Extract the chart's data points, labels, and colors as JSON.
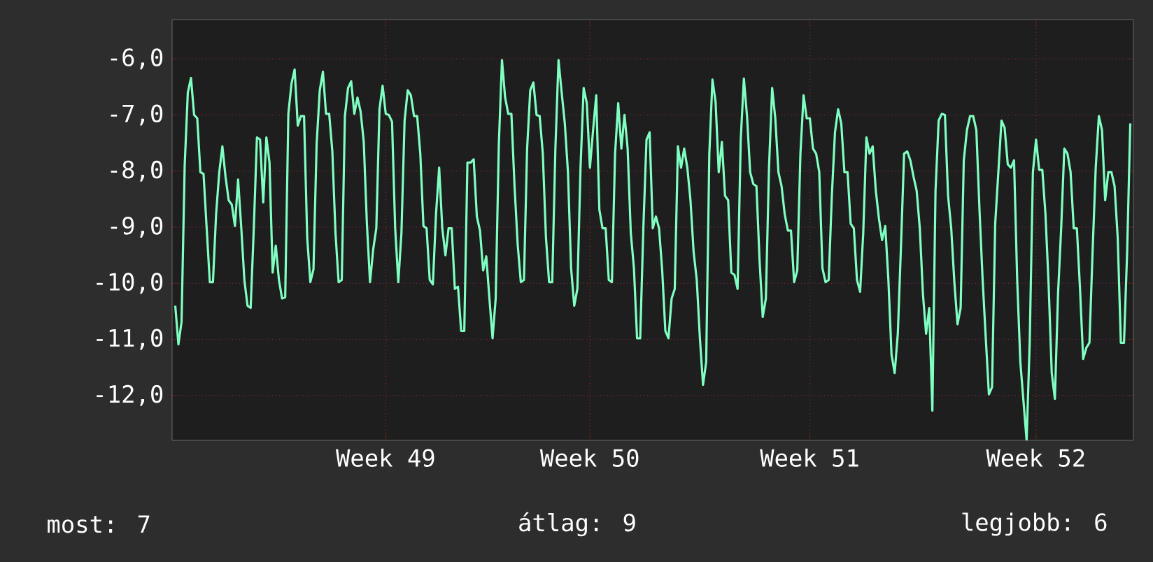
{
  "chart_data": {
    "type": "line",
    "categories": [
      null,
      null,
      null,
      null,
      null,
      null,
      null,
      null,
      null,
      null,
      null,
      null,
      null,
      null,
      null,
      null,
      null,
      null,
      null,
      null,
      null,
      null,
      null,
      null,
      null,
      null,
      null,
      null,
      null,
      null,
      null,
      null,
      null,
      null,
      null,
      null,
      null,
      null,
      null,
      null,
      null,
      null,
      null,
      null,
      null,
      null,
      null,
      null,
      null,
      null,
      null,
      null,
      null,
      null,
      null,
      null,
      null,
      null,
      null,
      null,
      null,
      null,
      null,
      null,
      null,
      null,
      null,
      "Week 49",
      null,
      null,
      null,
      null,
      null,
      null,
      null,
      null,
      null,
      null,
      null,
      null,
      null,
      null,
      null,
      null,
      null,
      null,
      null,
      null,
      null,
      null,
      null,
      null,
      null,
      null,
      null,
      null,
      null,
      null,
      null,
      null,
      null,
      null,
      null,
      null,
      null,
      null,
      null,
      null,
      null,
      null,
      null,
      null,
      null,
      null,
      null,
      null,
      null,
      null,
      null,
      null,
      null,
      null,
      null,
      null,
      null,
      null,
      null,
      null,
      null,
      null,
      null,
      null,
      "Week 50",
      null,
      null,
      null,
      null,
      null,
      null,
      null,
      null,
      null,
      null,
      null,
      null,
      null,
      null,
      null,
      null,
      null,
      null,
      null,
      null,
      null,
      null,
      null,
      null,
      null,
      null,
      null,
      null,
      null,
      null,
      null,
      null,
      null,
      null,
      null,
      null,
      null,
      null,
      null,
      null,
      null,
      null,
      null,
      null,
      null,
      null,
      null,
      null,
      null,
      null,
      null,
      null,
      null,
      null,
      null,
      null,
      null,
      null,
      null,
      null,
      null,
      null,
      null,
      null,
      null,
      null,
      null,
      null,
      null,
      "Week 51",
      null,
      null,
      null,
      null,
      null,
      null,
      null,
      null,
      null,
      null,
      null,
      null,
      null,
      null,
      null,
      null,
      null,
      null,
      null,
      null,
      null,
      null,
      null,
      null,
      null,
      null,
      null,
      null,
      null,
      null,
      null,
      null,
      null,
      null,
      null,
      null,
      null,
      null,
      null,
      null,
      null,
      null,
      null,
      null,
      null,
      null,
      null,
      null,
      null,
      null,
      null,
      null,
      null,
      null,
      null,
      null,
      null,
      null,
      null,
      null,
      null,
      null,
      null,
      null,
      null,
      null,
      null,
      null,
      null,
      null,
      null,
      "Week 52",
      null,
      null,
      null,
      null,
      null,
      null,
      null,
      null,
      null,
      null,
      null,
      null,
      null,
      null,
      null,
      null,
      null,
      null,
      null,
      null,
      null,
      null,
      null,
      null,
      null,
      null,
      null,
      null,
      null,
      null
    ],
    "values": [
      -10.4,
      -11.09,
      -10.69,
      -7.9,
      -6.6,
      -6.34,
      -7.0,
      -7.06,
      -8.02,
      -8.05,
      -9.02,
      -9.98,
      -9.98,
      -8.77,
      -8.02,
      -7.56,
      -8.1,
      -8.52,
      -8.6,
      -8.98,
      -8.15,
      -9.0,
      -9.94,
      -10.4,
      -10.44,
      -9.02,
      -7.4,
      -7.44,
      -8.56,
      -7.4,
      -7.85,
      -9.81,
      -9.33,
      -9.94,
      -10.27,
      -10.25,
      -6.98,
      -6.44,
      -6.19,
      -7.19,
      -7.02,
      -7.02,
      -9.19,
      -9.98,
      -9.75,
      -7.52,
      -6.56,
      -6.23,
      -6.98,
      -6.98,
      -7.65,
      -9.1,
      -9.98,
      -9.94,
      -7.02,
      -6.52,
      -6.4,
      -6.98,
      -6.69,
      -6.94,
      -7.48,
      -8.94,
      -9.98,
      -9.4,
      -9.02,
      -6.9,
      -6.48,
      -6.98,
      -7.0,
      -7.12,
      -9.02,
      -9.98,
      -9.1,
      -7.1,
      -6.56,
      -6.65,
      -7.02,
      -7.02,
      -7.69,
      -8.98,
      -9.02,
      -9.94,
      -10.02,
      -8.77,
      -7.94,
      -9.02,
      -9.5,
      -9.02,
      -9.02,
      -10.1,
      -10.06,
      -10.85,
      -10.85,
      -7.85,
      -7.85,
      -7.79,
      -8.81,
      -9.06,
      -9.77,
      -9.52,
      -10.27,
      -10.98,
      -10.27,
      -7.52,
      -6.02,
      -6.69,
      -6.98,
      -6.98,
      -8.27,
      -9.31,
      -9.98,
      -9.94,
      -7.6,
      -6.56,
      -6.42,
      -7.0,
      -7.02,
      -7.69,
      -9.19,
      -9.98,
      -9.98,
      -7.6,
      -6.02,
      -6.6,
      -7.15,
      -8.02,
      -9.73,
      -10.4,
      -10.1,
      -7.94,
      -6.52,
      -6.79,
      -7.94,
      -7.27,
      -6.65,
      -8.69,
      -9.02,
      -9.02,
      -9.94,
      -9.98,
      -7.69,
      -6.79,
      -7.6,
      -7.0,
      -7.6,
      -9.1,
      -9.73,
      -10.98,
      -10.98,
      -9.02,
      -7.44,
      -7.31,
      -9.02,
      -8.81,
      -9.02,
      -9.77,
      -10.85,
      -10.98,
      -10.27,
      -10.1,
      -7.56,
      -7.94,
      -7.6,
      -7.94,
      -8.52,
      -9.44,
      -9.94,
      -10.98,
      -11.81,
      -11.4,
      -7.69,
      -6.37,
      -6.77,
      -8.02,
      -7.48,
      -8.44,
      -8.52,
      -9.81,
      -9.85,
      -10.1,
      -7.44,
      -6.35,
      -7.02,
      -8.02,
      -8.23,
      -8.27,
      -9.6,
      -10.6,
      -10.27,
      -7.94,
      -6.52,
      -7.06,
      -8.02,
      -8.27,
      -8.77,
      -9.06,
      -9.06,
      -9.98,
      -9.77,
      -7.69,
      -6.65,
      -7.06,
      -7.06,
      -7.6,
      -7.69,
      -8.02,
      -9.73,
      -9.98,
      -9.94,
      -8.44,
      -7.31,
      -6.9,
      -7.15,
      -8.02,
      -8.02,
      -8.94,
      -9.02,
      -9.94,
      -10.15,
      -9.1,
      -7.4,
      -7.69,
      -7.56,
      -8.35,
      -8.85,
      -9.23,
      -8.98,
      -9.94,
      -11.27,
      -11.6,
      -10.9,
      -9.35,
      -7.69,
      -7.65,
      -7.81,
      -8.1,
      -8.35,
      -9.02,
      -10.19,
      -10.9,
      -10.44,
      -12.27,
      -8.35,
      -7.1,
      -6.98,
      -7.0,
      -8.44,
      -9.02,
      -9.98,
      -10.73,
      -10.44,
      -7.81,
      -7.27,
      -7.02,
      -7.02,
      -7.27,
      -8.69,
      -9.94,
      -10.98,
      -11.98,
      -11.85,
      -8.94,
      -8.02,
      -7.1,
      -7.23,
      -7.88,
      -7.94,
      -7.81,
      -9.94,
      -11.4,
      -12.1,
      -12.8,
      -11.02,
      -8.02,
      -7.44,
      -7.98,
      -7.98,
      -8.77,
      -10.02,
      -11.6,
      -12.06,
      -10.19,
      -9.02,
      -7.6,
      -7.69,
      -8.02,
      -9.02,
      -9.02,
      -10.1,
      -11.35,
      -11.15,
      -11.06,
      -9.44,
      -7.94,
      -7.02,
      -7.27,
      -8.52,
      -8.02,
      -8.02,
      -8.27,
      -9.19,
      -11.06,
      -11.06,
      -9.44,
      -7.15
    ],
    "color": "#7fffc0",
    "ylim": [
      -12.8,
      -5.3
    ],
    "yticks": [
      {
        "value": -12,
        "label": "-12,0"
      },
      {
        "value": -11,
        "label": "-11,0"
      },
      {
        "value": -10,
        "label": "-10,0"
      },
      {
        "value": -9,
        "label": "-9,0"
      },
      {
        "value": -8,
        "label": "-8,0"
      },
      {
        "value": -7,
        "label": "-7,0"
      },
      {
        "value": -6,
        "label": "-6,0"
      }
    ],
    "grid": true,
    "marker": "none",
    "line_style": "solid",
    "annotations": [
      "most: 7",
      "átlag: 9",
      "legjobb: 6"
    ]
  }
}
